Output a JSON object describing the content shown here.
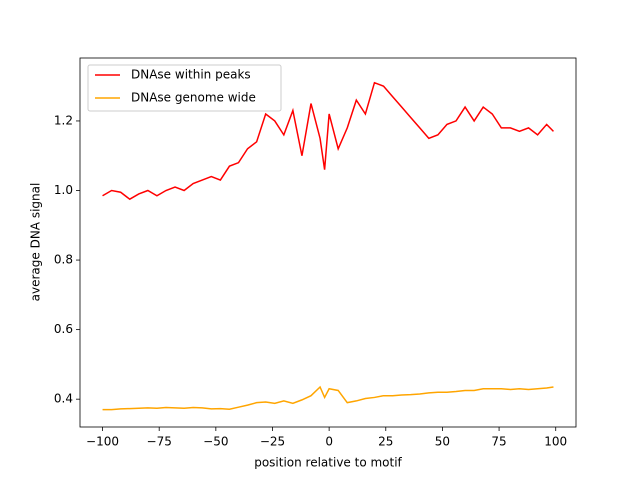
{
  "chart_data": {
    "type": "line",
    "xlabel": "position relative to motif",
    "ylabel": "average DNA signal",
    "x": [
      -100,
      -96,
      -92,
      -88,
      -84,
      -80,
      -76,
      -72,
      -68,
      -64,
      -60,
      -56,
      -52,
      -48,
      -44,
      -40,
      -36,
      -32,
      -28,
      -24,
      -20,
      -16,
      -12,
      -8,
      -4,
      -2,
      0,
      4,
      8,
      12,
      16,
      20,
      24,
      28,
      32,
      36,
      40,
      44,
      48,
      52,
      56,
      60,
      64,
      68,
      72,
      76,
      80,
      84,
      88,
      92,
      96,
      99
    ],
    "series": [
      {
        "name": "DNAse within peaks",
        "color": "#ff0000",
        "values": [
          0.985,
          1.0,
          0.995,
          0.975,
          0.99,
          1.0,
          0.985,
          1.0,
          1.01,
          1.0,
          1.02,
          1.03,
          1.04,
          1.03,
          1.07,
          1.08,
          1.12,
          1.14,
          1.22,
          1.2,
          1.16,
          1.23,
          1.1,
          1.25,
          1.15,
          1.06,
          1.22,
          1.12,
          1.18,
          1.26,
          1.22,
          1.31,
          1.3,
          1.27,
          1.24,
          1.21,
          1.18,
          1.15,
          1.16,
          1.19,
          1.2,
          1.24,
          1.2,
          1.24,
          1.22,
          1.18,
          1.18,
          1.17,
          1.18,
          1.16,
          1.19,
          1.17
        ]
      },
      {
        "name": "DNAse genome wide",
        "color": "#ffa500",
        "values": [
          0.37,
          0.37,
          0.372,
          0.373,
          0.374,
          0.375,
          0.374,
          0.376,
          0.375,
          0.374,
          0.376,
          0.375,
          0.372,
          0.373,
          0.371,
          0.377,
          0.383,
          0.39,
          0.392,
          0.388,
          0.395,
          0.388,
          0.398,
          0.41,
          0.435,
          0.405,
          0.43,
          0.425,
          0.39,
          0.395,
          0.402,
          0.405,
          0.41,
          0.41,
          0.412,
          0.413,
          0.415,
          0.418,
          0.42,
          0.42,
          0.422,
          0.425,
          0.425,
          0.43,
          0.43,
          0.43,
          0.428,
          0.43,
          0.428,
          0.43,
          0.432,
          0.435
        ]
      }
    ],
    "xlim": [
      -109.95,
      108.95
    ],
    "ylim": [
      0.32,
      1.381
    ],
    "xticks": [
      {
        "value": -100,
        "label": "−100"
      },
      {
        "value": -75,
        "label": "−75"
      },
      {
        "value": -50,
        "label": "−50"
      },
      {
        "value": -25,
        "label": "−25"
      },
      0,
      25,
      50,
      75,
      100
    ],
    "yticks": [
      0.4,
      0.6,
      0.8,
      {
        "value": 1.0,
        "label": "1.0"
      },
      1.2
    ],
    "legend": "upper left"
  }
}
